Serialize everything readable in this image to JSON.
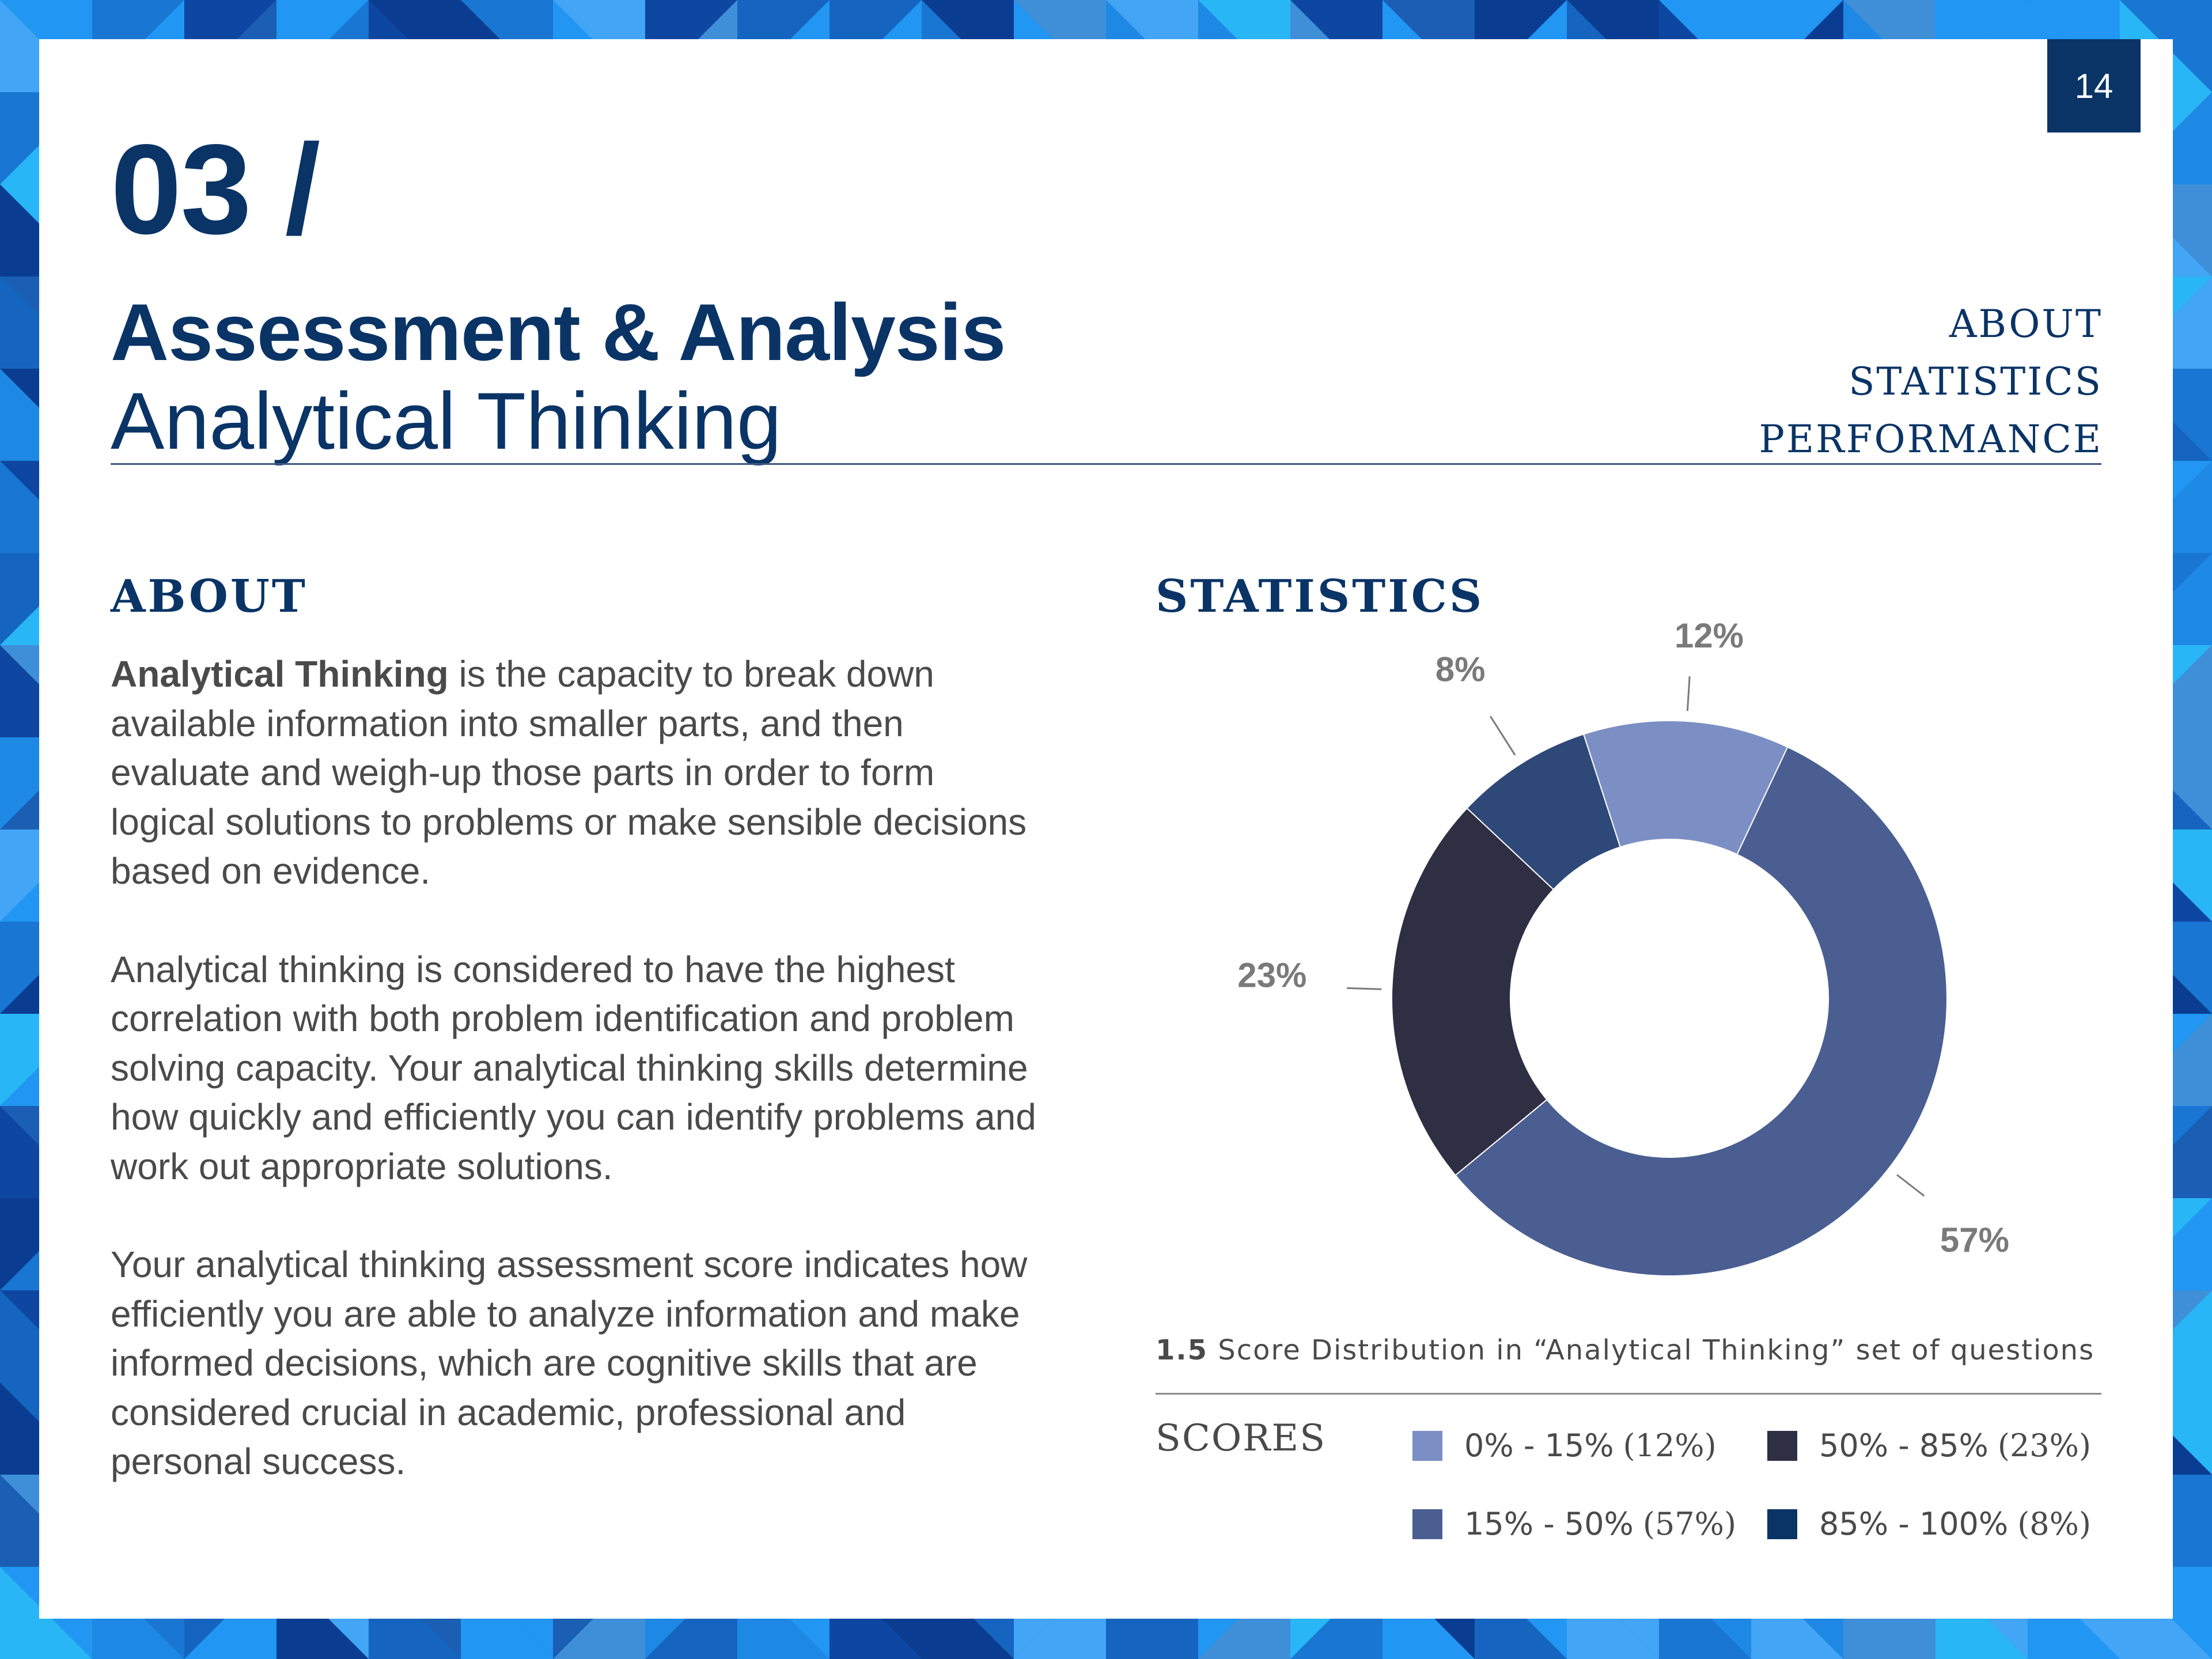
{
  "page": {
    "number": "14",
    "section_number": "03 /",
    "section_title": "Assessment & Analysis",
    "section_subtitle": "Analytical Thinking",
    "frame_color": "#1565c0"
  },
  "nav": {
    "items": [
      "ABOUT",
      "STATISTICS",
      "PERFORMANCE"
    ]
  },
  "about": {
    "heading": "ABOUT",
    "p1_bold": "Analytical Thinking",
    "p1_rest": " is the capacity to break down available information into smaller parts, and then evaluate and weigh-up those parts in order to form logical solutions to problems or make sensible decisions based on evidence.",
    "p2": "Analytical thinking is considered to have the highest correlation with both problem identification and problem solving capacity. Your analytical thinking skills determine how quickly and efficiently you can identify problems and work out appropriate solutions.",
    "p3": "Your analytical thinking assessment score indicates how efficiently you are able to analyze information and make informed decisions, which are cognitive skills that are considered crucial in academic, professional and personal success."
  },
  "statistics": {
    "heading": "STATISTICS",
    "caption_number": "1.5",
    "caption_text": " Score Distribution in “Analytical Thinking” set of questions",
    "legend_label": "SCORES"
  },
  "chart_data": {
    "type": "pie",
    "donut": true,
    "title": "",
    "slices": [
      {
        "label": "0% - 15%",
        "value": 12,
        "data_label": "12%",
        "color": "#7b8fc4"
      },
      {
        "label": "15% - 50%",
        "value": 57,
        "data_label": "57%",
        "color": "#4a5e91"
      },
      {
        "label": "50% - 85%",
        "value": 23,
        "data_label": "23%",
        "color": "#302e43"
      },
      {
        "label": "85% - 100%",
        "value": 8,
        "data_label": "8%",
        "color": "#2e4877"
      }
    ],
    "legend": [
      {
        "range": "0% - 15%",
        "pct": "(12%)",
        "color": "#7b8fc4"
      },
      {
        "range": "15% - 50%",
        "pct": "(57%)",
        "color": "#4a5e91"
      },
      {
        "range": "50% - 85%",
        "pct": "(23%)",
        "color": "#302e43"
      },
      {
        "range": "85% - 100%",
        "pct": "(8%)",
        "color": "#0a3466"
      }
    ],
    "legend_position": "bottom",
    "label_color": "#7a7a7a"
  }
}
